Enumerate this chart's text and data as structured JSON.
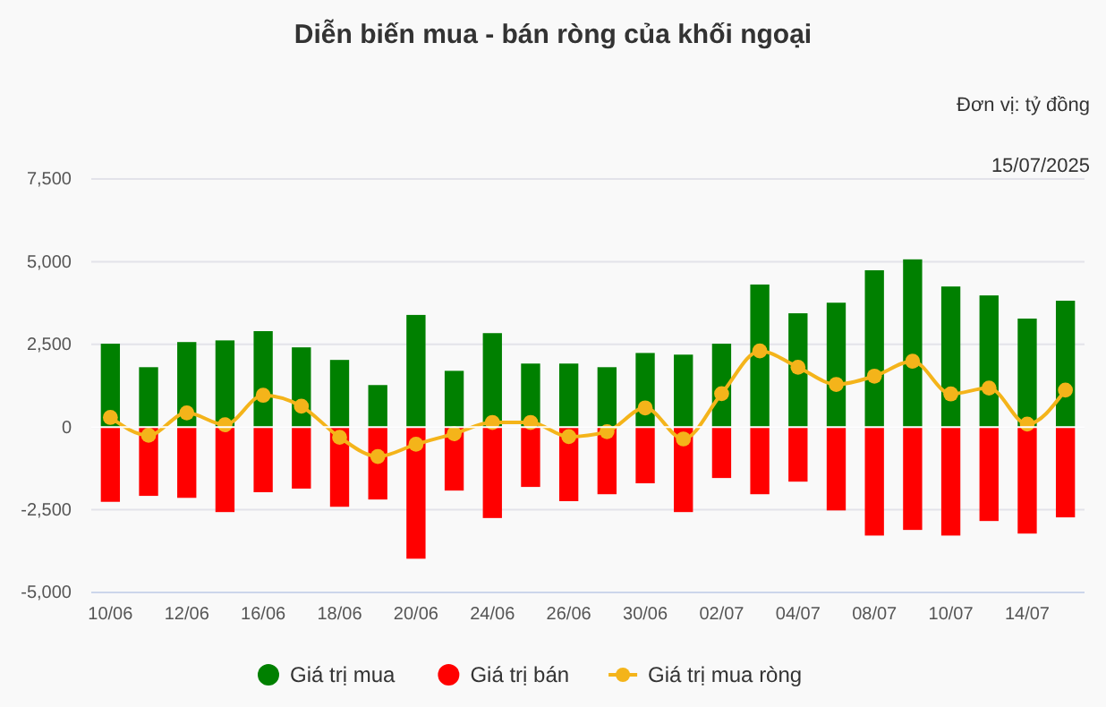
{
  "chart_data": {
    "type": "bar",
    "title": "Diễn biến mua - bán ròng của khối ngoại",
    "annotations": [
      "Đơn vị: tỷ đồng",
      "15/07/2025"
    ],
    "categories": [
      "10/06",
      null,
      "12/06",
      null,
      "16/06",
      null,
      "18/06",
      null,
      "20/06",
      null,
      "24/06",
      null,
      "26/06",
      null,
      "30/06",
      null,
      "02/07",
      null,
      "04/07",
      null,
      "08/07",
      null,
      "10/07",
      null,
      "14/07",
      null
    ],
    "stacked": true,
    "series": [
      {
        "name": "Giá trị mua",
        "color": "#008000",
        "values": [
          2520,
          1810,
          2570,
          2620,
          2900,
          2410,
          2030,
          1270,
          3390,
          1700,
          2840,
          1920,
          1920,
          1810,
          2240,
          2190,
          2520,
          4310,
          3440,
          3760,
          4740,
          5070,
          4250,
          3980,
          3280,
          3820
        ]
      },
      {
        "name": "Giá trị bán",
        "color": "#ff0000",
        "values": [
          -2260,
          -2080,
          -2140,
          -2570,
          -1970,
          -1860,
          -2410,
          -2190,
          -3980,
          -1920,
          -2750,
          -1810,
          -2240,
          -2030,
          -1700,
          -2570,
          -1540,
          -2030,
          -1650,
          -2520,
          -3280,
          -3110,
          -3280,
          -2840,
          -3220,
          -2730
        ]
      },
      {
        "name": "Giá trị mua ròng",
        "type": "line",
        "color": "#f4b41a",
        "marker": "circle",
        "values": [
          290,
          -250,
          430,
          70,
          960,
          630,
          -310,
          -890,
          -520,
          -200,
          140,
          140,
          -290,
          -140,
          580,
          -360,
          1010,
          2300,
          1810,
          1290,
          1540,
          1990,
          1000,
          1180,
          90,
          1120
        ]
      }
    ],
    "ylim": [
      -5000,
      7500
    ],
    "yticks": [
      {
        "value": -5000,
        "label": "-5,000"
      },
      {
        "value": -2500,
        "label": "-2,500"
      },
      0,
      {
        "value": 2500,
        "label": "2,500"
      },
      {
        "value": 5000,
        "label": "5,000"
      },
      {
        "value": 7500,
        "label": "7,500"
      }
    ],
    "grid": "y",
    "legend": "bottom"
  }
}
